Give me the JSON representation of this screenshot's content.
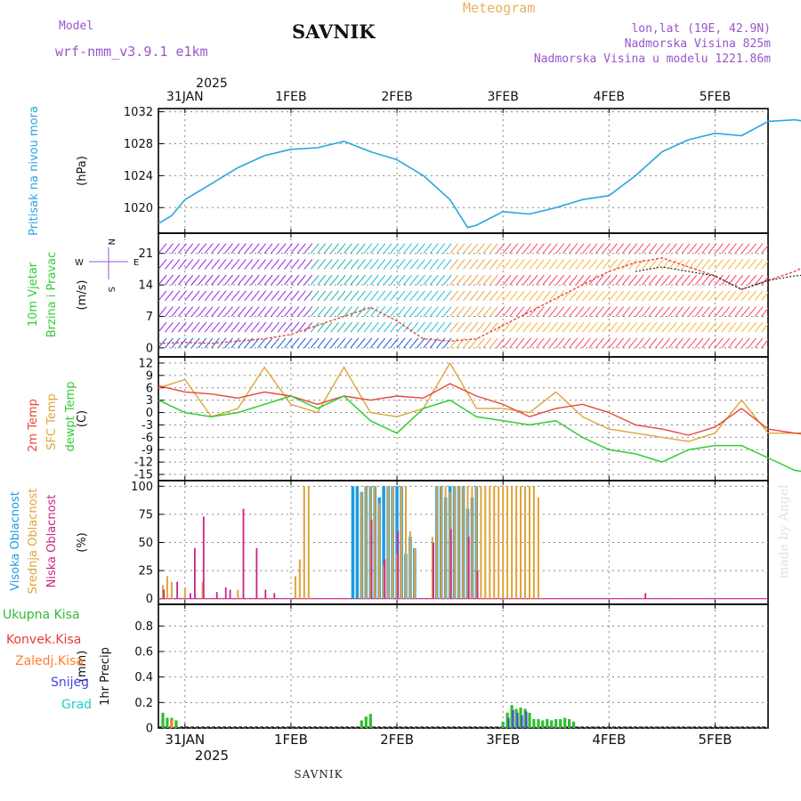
{
  "header": {
    "model_label": "Model",
    "model_name": "wrf-nmm_v3.9.1 e1km",
    "station": "SAVNIK",
    "chart_kind": "Meteogram",
    "lonlat": "lon,lat (19E, 42.9N)",
    "elevation": "Nadmorska Visina 825m",
    "model_elevation": "Nadmorska Visina u modelu 1221.86m",
    "footer": "SAVNIK",
    "watermark": "made by Angel"
  },
  "colors": {
    "pressure": "#2aa6e0",
    "temp2m": "#e8473a",
    "sfc": "#e0a33a",
    "dewpt": "#33cc33",
    "hi_cloud": "#1e9be0",
    "mid_cloud": "#e0a33a",
    "low_cloud": "#cc2288",
    "total_rain": "#33bb33",
    "conv": "#e83a3a",
    "frz": "#ff7f27",
    "snow": "#4444dd",
    "hail": "#22cccc",
    "meta": "#9955cc",
    "orange_title": "#e8b060"
  },
  "time_axis": {
    "top_year": "2025",
    "bottom_year": "2025",
    "days": [
      "31JAN",
      "1FEB",
      "2FEB",
      "3FEB",
      "4FEB",
      "5FEB"
    ],
    "start_hour_before_first_day": 6,
    "end_hour_after_last_day": 12
  },
  "chart_data": [
    {
      "type": "line",
      "panel": "pressure",
      "ylabel_lines": [
        "Pritisak na nivou mora"
      ],
      "unit": "(hPa)",
      "yticks": [
        "1020",
        "1024",
        "1028",
        "1032"
      ],
      "ylim": [
        1016.8,
        1032.4
      ],
      "series": [
        {
          "x_hours": [
            -6,
            -3,
            0,
            6,
            12,
            18,
            24,
            30,
            36,
            42,
            48,
            54,
            60,
            64,
            66,
            72,
            78,
            84,
            90,
            96,
            102,
            108,
            114,
            120,
            126,
            132,
            138,
            144,
            150
          ],
          "values": [
            1018,
            1019,
            1021,
            1023,
            1025,
            1026.5,
            1027.3,
            1027.5,
            1028.3,
            1027,
            1026,
            1024,
            1021,
            1017.5,
            1017.8,
            1019.5,
            1019.2,
            1020,
            1021,
            1021.5,
            1024,
            1027,
            1028.5,
            1029.3,
            1029,
            1030.8,
            1031,
            1030.5,
            1027.3
          ]
        }
      ]
    },
    {
      "type": "line",
      "panel": "wind",
      "ylabel_lines": [
        "10m Vjetar",
        "Brzina i Pravac"
      ],
      "unit": "(m/s)",
      "yticks": [
        "0",
        "7",
        "14",
        "21"
      ],
      "ylim": [
        -2,
        25.5
      ],
      "compass_legend": {
        "n": "N",
        "s": "S",
        "e": "E",
        "w": "W"
      },
      "series": [
        {
          "name": "wind speed",
          "x_hours": [
            -6,
            0,
            6,
            12,
            18,
            24,
            30,
            36,
            42,
            48,
            54,
            60,
            66,
            72,
            78,
            84,
            90,
            96,
            102,
            108,
            114,
            120,
            126,
            132,
            138,
            144,
            150
          ],
          "values": [
            1,
            1.2,
            1,
            1.5,
            2,
            3,
            5,
            7,
            9,
            6,
            2,
            1.5,
            2,
            5,
            8,
            11,
            14,
            17,
            19,
            20,
            18,
            16,
            13,
            15,
            17,
            20,
            21
          ]
        },
        {
          "name": "upper level",
          "x_hours": [
            102,
            108,
            114,
            120,
            126,
            132,
            138,
            144,
            150
          ],
          "values": [
            17,
            18,
            17,
            16,
            13,
            15,
            16,
            16.5,
            17
          ]
        }
      ]
    },
    {
      "type": "line",
      "panel": "temperature",
      "ylabel_lines": [
        "2m Temp",
        "SFC Temp",
        "dewpt Temp"
      ],
      "unit": "(C)",
      "yticks": [
        "-15",
        "-12",
        "-9",
        "-6",
        "-3",
        "0",
        "3",
        "6",
        "9",
        "12"
      ],
      "ylim": [
        -16.5,
        13.5
      ],
      "series": [
        {
          "name": "2m Temp",
          "x_hours": [
            -6,
            0,
            6,
            12,
            18,
            24,
            30,
            36,
            42,
            48,
            54,
            60,
            66,
            72,
            78,
            84,
            90,
            96,
            102,
            108,
            114,
            120,
            126,
            132,
            138,
            144,
            150
          ],
          "values": [
            6.5,
            5,
            4.5,
            3.5,
            5,
            4,
            2,
            4,
            3,
            4,
            3.5,
            7,
            4,
            2,
            -1,
            1,
            2,
            0,
            -3,
            -4,
            -5.5,
            -3.5,
            1,
            -4,
            -5,
            -5,
            2
          ]
        },
        {
          "name": "SFC Temp",
          "x_hours": [
            -6,
            0,
            6,
            12,
            18,
            24,
            30,
            36,
            42,
            48,
            54,
            60,
            66,
            72,
            78,
            84,
            90,
            96,
            102,
            108,
            114,
            120,
            126,
            132,
            138,
            144,
            150
          ],
          "values": [
            6,
            8,
            -1,
            1,
            11,
            2,
            0,
            11,
            0,
            -1,
            1,
            12,
            1,
            1,
            0,
            5,
            -1,
            -4,
            -5,
            -6,
            -7,
            -5,
            3,
            -5,
            -5,
            -6,
            4
          ]
        },
        {
          "name": "dewpt Temp",
          "x_hours": [
            -6,
            0,
            6,
            12,
            18,
            24,
            30,
            36,
            42,
            48,
            54,
            60,
            66,
            72,
            78,
            84,
            90,
            96,
            102,
            108,
            114,
            120,
            126,
            132,
            138,
            144,
            150
          ],
          "values": [
            3,
            0,
            -1,
            0,
            2,
            4,
            1,
            4,
            -2,
            -5,
            1,
            3,
            -1,
            -2,
            -3,
            -2,
            -6,
            -9,
            -10,
            -12,
            -9,
            -8,
            -8,
            -11,
            -14,
            -15,
            -6
          ]
        }
      ]
    },
    {
      "type": "bar",
      "panel": "clouds",
      "ylabel_lines": [
        "Visoka Oblacnost",
        "Srednja Oblacnost",
        "Niska Oblacnost"
      ],
      "unit": "(%)",
      "yticks": [
        "0",
        "25",
        "50",
        "75",
        "100"
      ],
      "ylim": [
        -5,
        105
      ],
      "series": [
        {
          "name": "Visoka Oblacnost",
          "x_hours": [
            38,
            39,
            40,
            41,
            42,
            43,
            44,
            45,
            46,
            47,
            48,
            49,
            50,
            51,
            52,
            57,
            58,
            59,
            60,
            61,
            62,
            63,
            64,
            65,
            66
          ],
          "values": [
            100,
            100,
            95,
            100,
            100,
            100,
            90,
            100,
            100,
            100,
            100,
            100,
            40,
            55,
            45,
            100,
            100,
            90,
            100,
            100,
            100,
            100,
            80,
            90,
            100
          ]
        },
        {
          "name": "Srednja Oblacnost",
          "x_hours": [
            -5,
            -4,
            -3,
            0,
            4,
            12,
            25,
            26,
            27,
            28,
            40,
            41,
            42,
            43,
            44,
            45,
            46,
            47,
            48,
            49,
            50,
            51,
            52,
            56,
            57,
            58,
            59,
            60,
            61,
            62,
            63,
            64,
            65,
            66,
            67,
            68,
            69,
            70,
            71,
            72,
            73,
            74,
            75,
            76,
            77,
            78,
            79,
            80
          ],
          "values": [
            12,
            20,
            15,
            10,
            15,
            8,
            20,
            35,
            100,
            100,
            95,
            100,
            100,
            100,
            85,
            30,
            100,
            100,
            40,
            100,
            100,
            60,
            45,
            55,
            100,
            100,
            100,
            95,
            100,
            100,
            100,
            100,
            100,
            100,
            100,
            100,
            100,
            100,
            100,
            100,
            100,
            100,
            100,
            100,
            100,
            100,
            100,
            90
          ]
        },
        {
          "name": "Niska Oblacnost",
          "x_hours": [
            -5,
            -2,
            1,
            2,
            4,
            7,
            9,
            10,
            13,
            16,
            18,
            20,
            42,
            45,
            48,
            56,
            60,
            64,
            66,
            104
          ],
          "values": [
            8,
            15,
            5,
            45,
            73,
            6,
            10,
            8,
            80,
            45,
            8,
            5,
            70,
            35,
            60,
            50,
            62,
            55,
            25,
            5
          ]
        }
      ]
    },
    {
      "type": "bar",
      "panel": "precipitation",
      "ylabel_lines": [
        "1hr Precip"
      ],
      "unit": "(mm)",
      "legend": [
        "Ukupna Kisa",
        "Konvek.Kisa",
        "Zaledj.Kisa",
        "Snijeg",
        "Grad"
      ],
      "yticks": [
        "0",
        "0.2",
        "0.4",
        "0.6",
        "0.8"
      ],
      "ylim": [
        0,
        0.97
      ],
      "series": [
        {
          "name": "Ukupna Kisa",
          "x_hours": [
            -5,
            -4,
            -3,
            -2,
            40,
            41,
            42,
            72,
            73,
            74,
            75,
            76,
            77,
            78,
            79,
            80,
            81,
            82,
            83,
            84,
            85,
            86,
            87,
            88
          ],
          "values": [
            0.12,
            0.08,
            0.08,
            0.06,
            0.06,
            0.09,
            0.11,
            0.05,
            0.12,
            0.18,
            0.15,
            0.16,
            0.15,
            0.12,
            0.07,
            0.07,
            0.06,
            0.07,
            0.06,
            0.07,
            0.07,
            0.08,
            0.07,
            0.05
          ]
        },
        {
          "name": "Snijeg",
          "x_hours": [
            73,
            74,
            75,
            76,
            77
          ],
          "values": [
            0.08,
            0.14,
            0.12,
            0.1,
            0.13
          ]
        },
        {
          "name": "Zaledj.Kisa",
          "x_hours": [
            -3
          ],
          "values": [
            0.06
          ]
        }
      ]
    }
  ]
}
